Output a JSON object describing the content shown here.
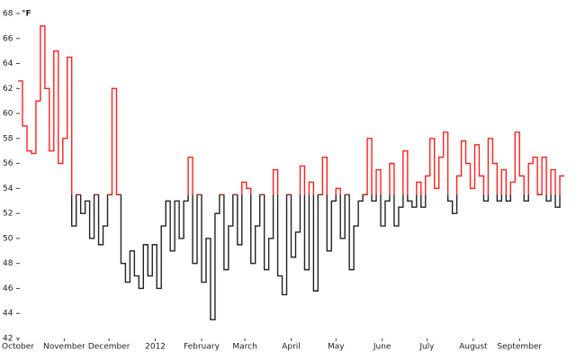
{
  "chart_data": {
    "type": "step-line",
    "y_unit": "°F",
    "x": [
      0,
      3,
      6,
      9,
      12,
      15,
      18,
      21,
      24,
      27,
      30,
      33,
      36,
      39,
      42,
      45,
      48,
      51,
      54,
      57,
      60,
      63,
      66,
      69,
      72,
      75,
      78,
      81,
      84,
      87,
      90,
      93,
      96,
      99,
      102,
      105,
      108,
      111,
      114,
      117,
      120,
      123,
      126,
      129,
      132,
      135,
      138,
      141,
      144,
      147,
      150,
      153,
      156,
      159,
      162,
      165,
      168,
      171,
      174,
      177,
      180,
      183,
      186,
      189,
      192,
      195,
      198,
      201,
      204,
      207,
      210,
      213,
      216,
      219,
      222,
      225,
      228,
      231,
      234,
      237,
      240,
      243,
      246,
      249,
      252,
      255,
      258,
      261,
      264,
      267,
      270,
      273,
      276,
      279,
      282,
      285,
      288,
      291,
      294,
      297,
      300,
      303,
      306,
      309,
      312,
      315,
      318,
      321,
      324,
      327,
      330,
      333,
      336,
      339,
      342,
      345,
      348,
      351,
      354,
      357,
      360,
      363
    ],
    "values": [
      62.6,
      59,
      57,
      56.8,
      61,
      67,
      62,
      57,
      65,
      56,
      58,
      64.5,
      51,
      53.5,
      52,
      53,
      50,
      53.5,
      49.5,
      51,
      53.5,
      62,
      53.5,
      48,
      46.5,
      49,
      47,
      46,
      49.5,
      47,
      49.5,
      46,
      51,
      53,
      49,
      53,
      50,
      53,
      56.5,
      48,
      53.5,
      46.5,
      50,
      43.5,
      52,
      53.5,
      47.5,
      51,
      53.5,
      49.5,
      54.5,
      54,
      48,
      51,
      53.5,
      47.5,
      50,
      55.5,
      47,
      45.5,
      53.5,
      48.5,
      50.5,
      55.8,
      47.5,
      54.5,
      45.8,
      53.5,
      56.5,
      49,
      53,
      54,
      50,
      53.5,
      47.5,
      51,
      53,
      53.5,
      58,
      53,
      55.5,
      51,
      53,
      56,
      51,
      52.5,
      57,
      53,
      52.5,
      54.5,
      52.5,
      55,
      58,
      54,
      56.5,
      58.5,
      53,
      52,
      55,
      57.8,
      56,
      54,
      57.5,
      55,
      53,
      58,
      56,
      53,
      55.5,
      53,
      54.5,
      58.5,
      55,
      53,
      56,
      56.5,
      53.5,
      56.5,
      53,
      55.5,
      52.5,
      55
    ],
    "threshold": 53.5,
    "color_above": "#ff2020",
    "color_below": "#222222",
    "xlim": [
      0,
      366
    ],
    "xticks": [
      {
        "value": 0,
        "label": "October"
      },
      {
        "value": 31,
        "label": "November"
      },
      {
        "value": 61,
        "label": "December"
      },
      {
        "value": 92,
        "label": "2012"
      },
      {
        "value": 123,
        "label": "February"
      },
      {
        "value": 152,
        "label": "March"
      },
      {
        "value": 183,
        "label": "April"
      },
      {
        "value": 213,
        "label": "May"
      },
      {
        "value": 244,
        "label": "June"
      },
      {
        "value": 274,
        "label": "July"
      },
      {
        "value": 305,
        "label": "August"
      },
      {
        "value": 336,
        "label": "September"
      }
    ],
    "ylim": [
      42,
      68
    ],
    "yticks": [
      42,
      44,
      46,
      48,
      50,
      52,
      54,
      56,
      58,
      60,
      62,
      64,
      66,
      68
    ]
  }
}
